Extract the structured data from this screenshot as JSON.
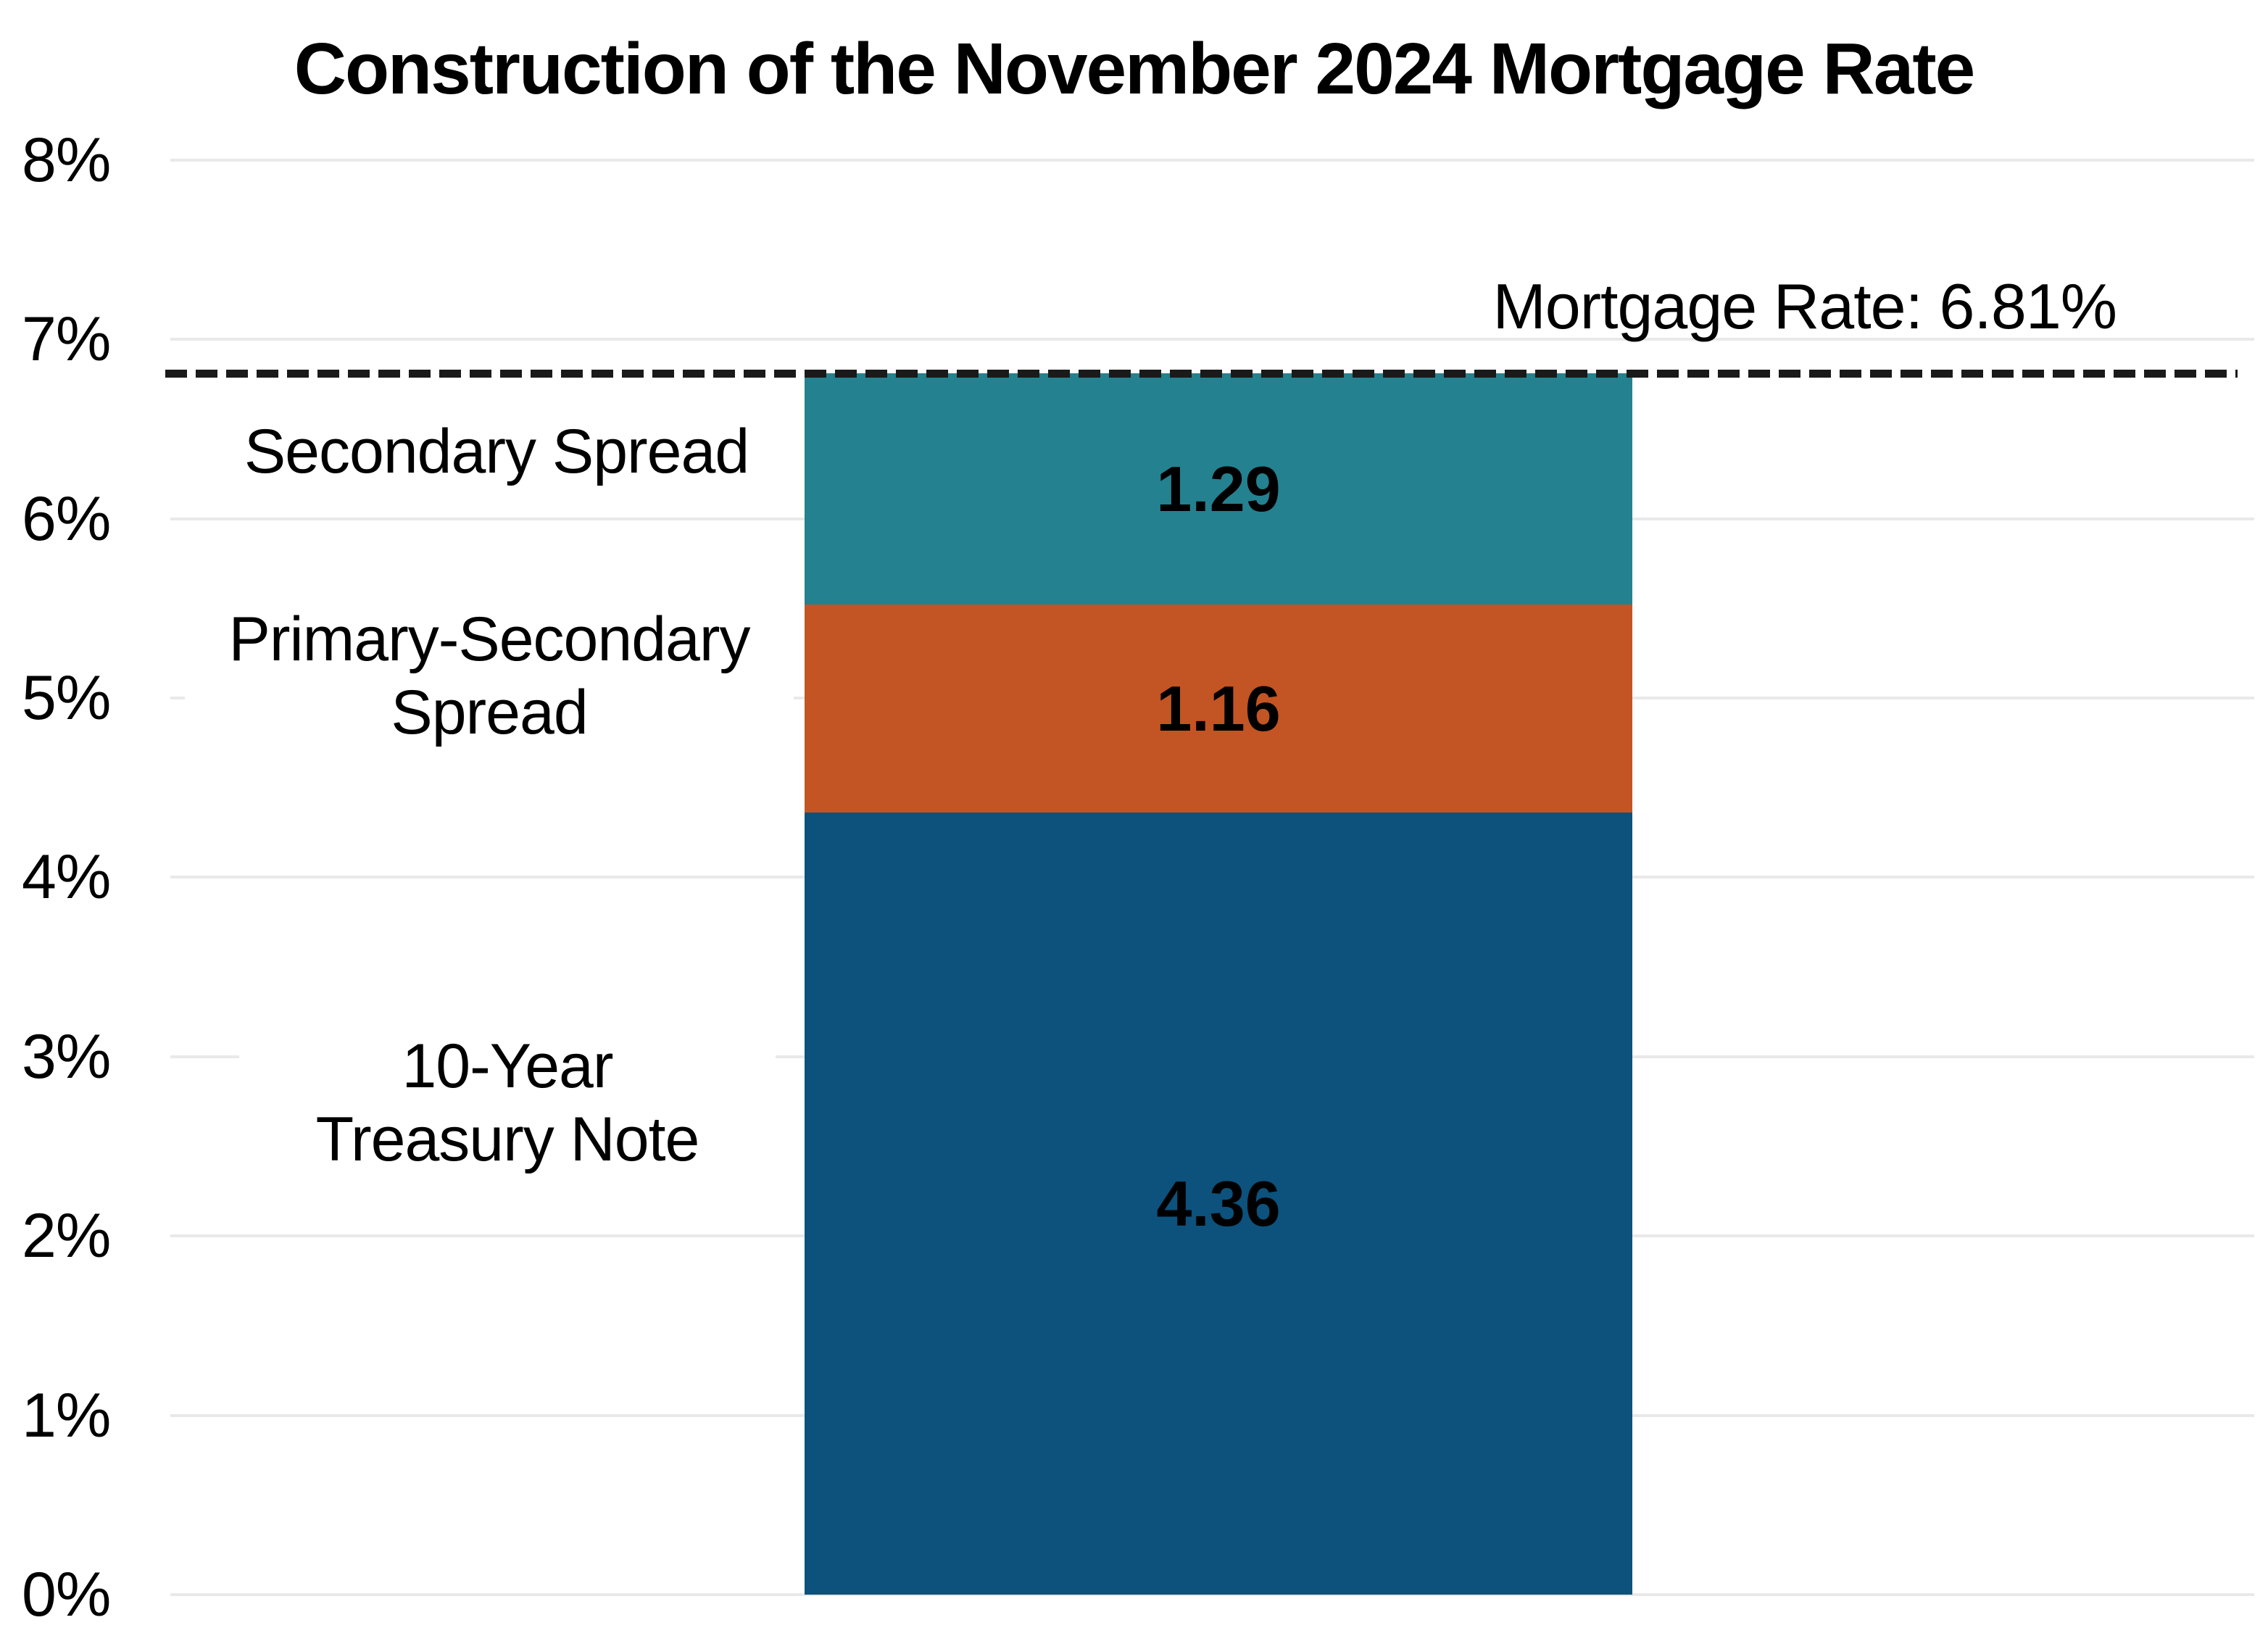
{
  "chart_data": {
    "type": "bar",
    "stacked": true,
    "orientation": "vertical",
    "title": "Construction of the November 2024 Mortgage Rate",
    "series": [
      {
        "name": "10-Year Treasury Note",
        "category_label": "10-Year\nTreasury Note",
        "value": 4.36,
        "value_label": "4.36",
        "color": "#0C527C"
      },
      {
        "name": "Primary-Secondary Spread",
        "category_label": "Primary-Secondary\nSpread",
        "value": 1.16,
        "value_label": "1.16",
        "color": "#C35423"
      },
      {
        "name": "Secondary Spread",
        "category_label": "Secondary Spread",
        "value": 1.29,
        "value_label": "1.29",
        "color": "#24818F"
      }
    ],
    "total": 6.81,
    "annotation": {
      "label": "Mortgage Rate: 6.81%",
      "value": 6.81,
      "line_style": "dashed",
      "line_color": "#1A1A1A"
    },
    "y_axis": {
      "min": 0,
      "max": 8,
      "tick_step": 1,
      "tick_labels": [
        "0%",
        "1%",
        "2%",
        "3%",
        "4%",
        "5%",
        "6%",
        "7%",
        "8%"
      ],
      "gridlines": true,
      "gridline_color": "#E9E9E9"
    },
    "xlabel": "",
    "ylabel": "",
    "legend": false
  }
}
